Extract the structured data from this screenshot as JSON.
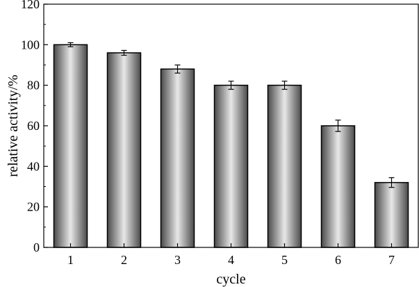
{
  "chart_data": {
    "type": "bar",
    "title": "",
    "xlabel": "cycle",
    "ylabel": "relative activity/%",
    "categories": [
      "1",
      "2",
      "3",
      "4",
      "5",
      "6",
      "7"
    ],
    "values": [
      100,
      96,
      88,
      80,
      80,
      60,
      32
    ],
    "errors": [
      1,
      1.2,
      2,
      2,
      2,
      2.8,
      2.4
    ],
    "ylim": [
      0,
      120
    ],
    "yticks": [
      0,
      20,
      40,
      60,
      80,
      100,
      120
    ],
    "grid": false,
    "legend": "none",
    "bar_colors": {
      "edge": "#4a4a4a",
      "center": "#e8e8e8",
      "outline": "#000000"
    }
  }
}
